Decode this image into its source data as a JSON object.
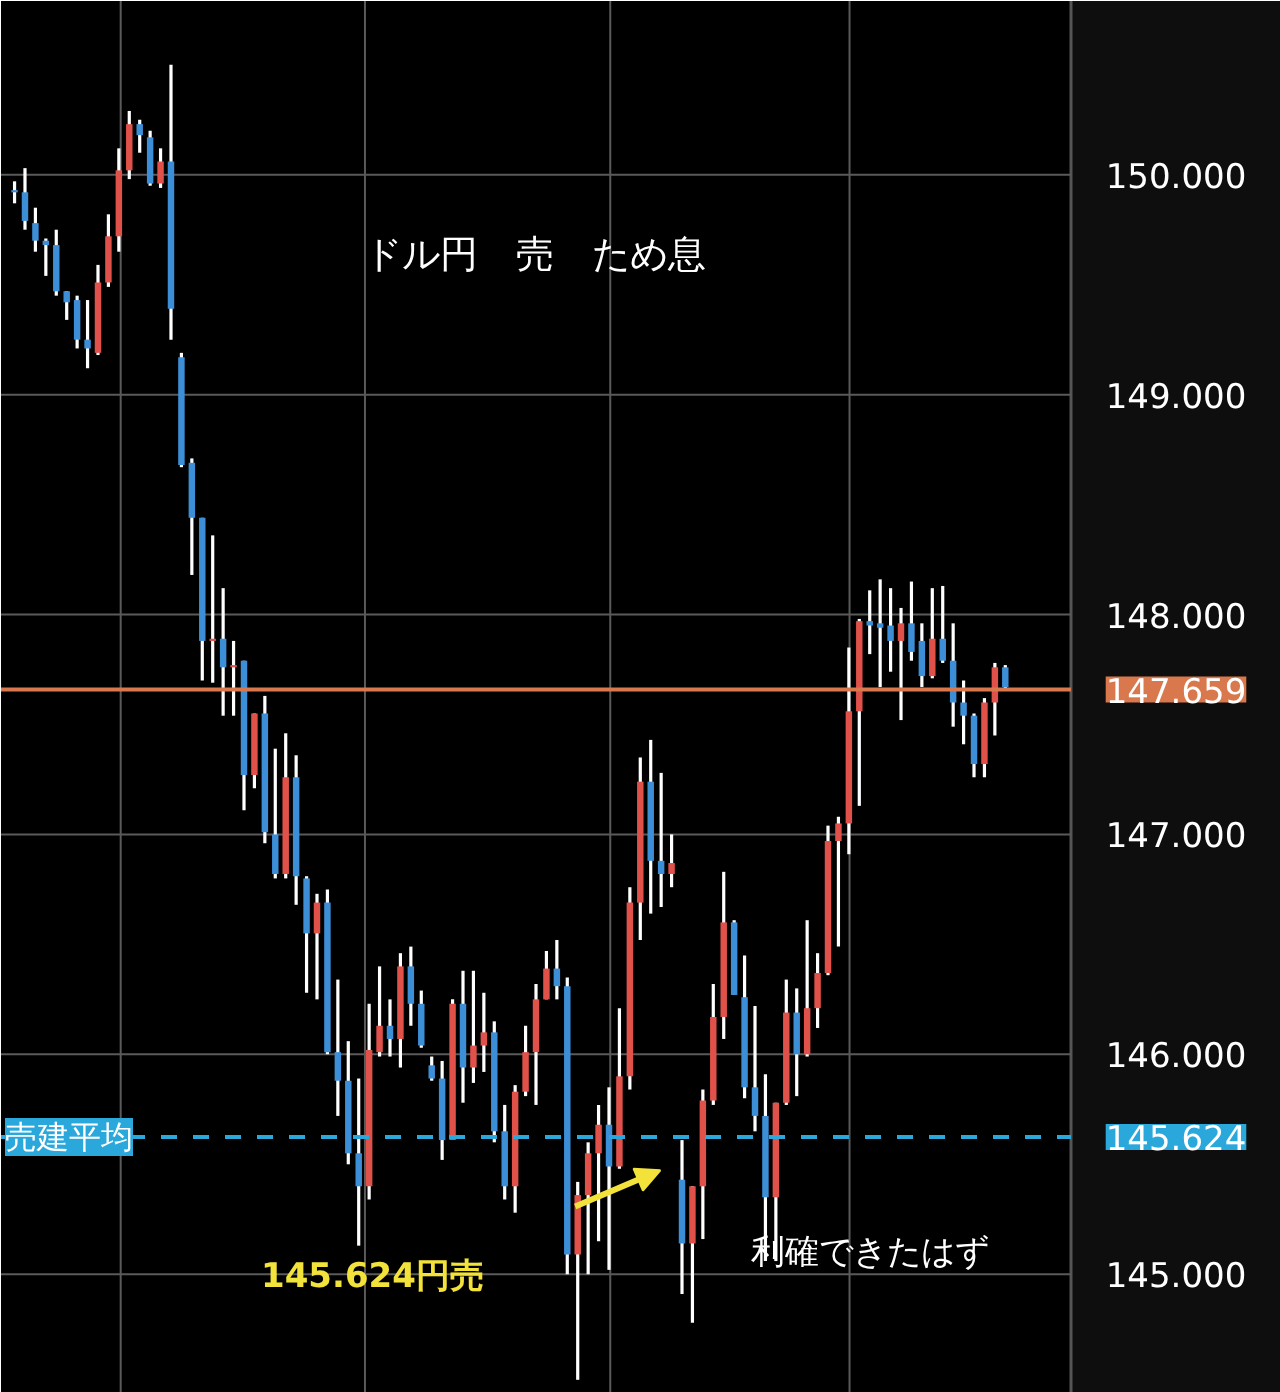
{
  "chart_data": {
    "type": "candlestick",
    "title": "ドル円　売　ため息",
    "categories": [
      null,
      null,
      null,
      null,
      null,
      null,
      null,
      null,
      null,
      null,
      null,
      null,
      null,
      null,
      null,
      null,
      null,
      null,
      null,
      null,
      null,
      null,
      null,
      null,
      null,
      null,
      null,
      null,
      null,
      null,
      null,
      null,
      null,
      null,
      null,
      null,
      null,
      null,
      null,
      null,
      null,
      null,
      null,
      null,
      null,
      null,
      null,
      null,
      null,
      null,
      null,
      null,
      null,
      null,
      null,
      null,
      null,
      null,
      null,
      null,
      null,
      null,
      null,
      null,
      null,
      null,
      null,
      null,
      null,
      null,
      null,
      null,
      null,
      null,
      null,
      null,
      null,
      null,
      null,
      null,
      null,
      null,
      null,
      null,
      null,
      null,
      null,
      null,
      null,
      null,
      null,
      null,
      null,
      null,
      null,
      null
    ],
    "ohlc": [
      [
        149.93,
        149.97,
        149.87,
        149.92
      ],
      [
        149.92,
        150.03,
        149.75,
        149.79
      ],
      [
        149.78,
        149.85,
        149.65,
        149.7
      ],
      [
        149.7,
        149.71,
        149.54,
        149.68
      ],
      [
        149.68,
        149.75,
        149.45,
        149.47
      ],
      [
        149.47,
        149.47,
        149.34,
        149.42
      ],
      [
        149.43,
        149.45,
        149.21,
        149.25
      ],
      [
        149.25,
        149.43,
        149.12,
        149.21
      ],
      [
        149.19,
        149.59,
        149.18,
        149.51
      ],
      [
        149.51,
        149.82,
        149.49,
        149.72
      ],
      [
        149.72,
        150.12,
        149.65,
        150.02
      ],
      [
        150.02,
        150.29,
        149.98,
        150.23
      ],
      [
        150.23,
        150.25,
        150.1,
        150.18
      ],
      [
        150.17,
        150.2,
        149.95,
        149.96
      ],
      [
        149.96,
        150.12,
        149.94,
        150.06
      ],
      [
        150.06,
        150.5,
        149.25,
        149.39
      ],
      [
        149.17,
        149.19,
        148.67,
        148.68
      ],
      [
        148.69,
        148.71,
        148.18,
        148.44
      ],
      [
        148.44,
        148.44,
        147.7,
        147.88
      ],
      [
        147.88,
        148.36,
        147.69,
        147.89
      ],
      [
        147.89,
        148.12,
        147.54,
        147.76
      ],
      [
        147.76,
        147.88,
        147.54,
        147.77
      ],
      [
        147.79,
        147.79,
        147.11,
        147.27
      ],
      [
        147.27,
        147.55,
        147.21,
        147.55
      ],
      [
        147.55,
        147.63,
        146.96,
        147.01
      ],
      [
        147.0,
        147.39,
        146.8,
        146.82
      ],
      [
        146.82,
        147.46,
        146.8,
        147.26
      ],
      [
        147.26,
        147.36,
        146.68,
        146.81
      ],
      [
        146.8,
        146.81,
        146.28,
        146.55
      ],
      [
        146.55,
        146.73,
        146.25,
        146.69
      ],
      [
        146.69,
        146.75,
        146.0,
        146.01
      ],
      [
        146.01,
        146.34,
        145.72,
        145.88
      ],
      [
        145.88,
        146.06,
        145.5,
        145.55
      ],
      [
        145.55,
        145.89,
        145.13,
        145.4
      ],
      [
        145.4,
        146.23,
        145.34,
        146.02
      ],
      [
        146.01,
        146.4,
        145.99,
        146.13
      ],
      [
        146.13,
        146.25,
        145.99,
        146.07
      ],
      [
        146.07,
        146.46,
        145.94,
        146.4
      ],
      [
        146.4,
        146.49,
        146.13,
        146.23
      ],
      [
        146.23,
        146.29,
        146.03,
        146.04
      ],
      [
        145.95,
        145.99,
        145.88,
        145.89
      ],
      [
        145.89,
        145.97,
        145.52,
        145.61
      ],
      [
        145.61,
        146.25,
        145.61,
        146.23
      ],
      [
        146.23,
        146.38,
        145.78,
        145.94
      ],
      [
        145.94,
        146.38,
        145.87,
        146.04
      ],
      [
        146.04,
        146.28,
        145.92,
        146.1
      ],
      [
        146.1,
        146.15,
        145.6,
        145.65
      ],
      [
        145.65,
        145.77,
        145.34,
        145.4
      ],
      [
        145.4,
        145.86,
        145.28,
        145.83
      ],
      [
        145.83,
        146.13,
        145.81,
        146.01
      ],
      [
        146.01,
        146.32,
        145.77,
        146.25
      ],
      [
        146.25,
        146.47,
        146.25,
        146.39
      ],
      [
        146.39,
        146.52,
        146.25,
        146.31
      ],
      [
        146.31,
        146.35,
        145.0,
        145.09
      ],
      [
        145.09,
        145.42,
        144.52,
        145.36
      ],
      [
        145.36,
        145.6,
        145.0,
        145.55
      ],
      [
        145.55,
        145.77,
        145.15,
        145.68
      ],
      [
        145.68,
        145.85,
        145.02,
        145.49
      ],
      [
        145.49,
        146.21,
        145.48,
        145.9
      ],
      [
        145.9,
        146.76,
        145.84,
        146.69
      ],
      [
        146.69,
        147.35,
        146.52,
        147.24
      ],
      [
        147.24,
        147.43,
        146.64,
        146.88
      ],
      [
        146.88,
        147.28,
        146.67,
        146.82
      ],
      [
        146.82,
        147.0,
        146.76,
        146.87
      ],
      [
        145.43,
        145.61,
        144.91,
        145.14
      ],
      [
        145.14,
        145.4,
        144.78,
        145.4
      ],
      [
        145.4,
        145.84,
        145.16,
        145.79
      ],
      [
        145.79,
        146.32,
        145.77,
        146.17
      ],
      [
        146.17,
        146.83,
        146.07,
        146.6
      ],
      [
        146.6,
        146.61,
        146.27,
        146.27
      ],
      [
        146.26,
        146.45,
        145.8,
        145.85
      ],
      [
        145.85,
        146.22,
        145.65,
        145.72
      ],
      [
        145.72,
        145.91,
        145.06,
        145.35
      ],
      [
        145.35,
        145.78,
        145.06,
        145.78
      ],
      [
        145.78,
        146.34,
        145.77,
        146.19
      ],
      [
        146.19,
        146.3,
        145.81,
        146.0
      ],
      [
        146.0,
        146.61,
        145.99,
        146.21
      ],
      [
        146.21,
        146.46,
        146.12,
        146.37
      ],
      [
        146.37,
        147.04,
        146.36,
        146.97
      ],
      [
        146.97,
        147.08,
        146.49,
        147.05
      ],
      [
        147.05,
        147.85,
        146.91,
        147.56
      ],
      [
        147.56,
        147.98,
        147.13,
        147.97
      ],
      [
        147.97,
        148.11,
        147.82,
        147.95
      ],
      [
        147.96,
        148.16,
        147.67,
        147.94
      ],
      [
        147.95,
        148.12,
        147.74,
        147.88
      ],
      [
        147.88,
        148.03,
        147.52,
        147.96
      ],
      [
        147.96,
        148.15,
        147.79,
        147.83
      ],
      [
        147.88,
        147.96,
        147.67,
        147.72
      ],
      [
        147.72,
        148.12,
        147.71,
        147.89
      ],
      [
        147.89,
        148.13,
        147.78,
        147.79
      ],
      [
        147.79,
        147.96,
        147.49,
        147.6
      ],
      [
        147.6,
        147.7,
        147.41,
        147.54
      ],
      [
        147.54,
        147.55,
        147.26,
        147.32
      ],
      [
        147.32,
        147.62,
        147.26,
        147.6
      ],
      [
        147.6,
        147.78,
        147.45,
        147.76
      ],
      [
        147.76,
        147.77,
        147.66,
        147.67
      ]
    ],
    "ylim": [
      144.46,
      150.79
    ],
    "yticks": [
      {
        "value": 145,
        "label": "145.000"
      },
      {
        "value": 146,
        "label": "146.000"
      },
      {
        "value": 147,
        "label": "147.000"
      },
      {
        "value": 148,
        "label": "148.000"
      },
      {
        "value": 149,
        "label": "149.000"
      },
      {
        "value": 150,
        "label": "150.000"
      }
    ],
    "grid": true,
    "ref_lines": [
      {
        "axis": "y",
        "value": 147.659,
        "label": null,
        "color": "#d9784c",
        "line_style": "solid"
      },
      {
        "axis": "y",
        "value": 145.624,
        "label": "売建平均",
        "color": "#2aa8dc",
        "line_style": "dashed"
      }
    ],
    "annotations": [
      "145.624円売",
      "利確できたはず",
      "147.659",
      "145.624"
    ]
  }
}
